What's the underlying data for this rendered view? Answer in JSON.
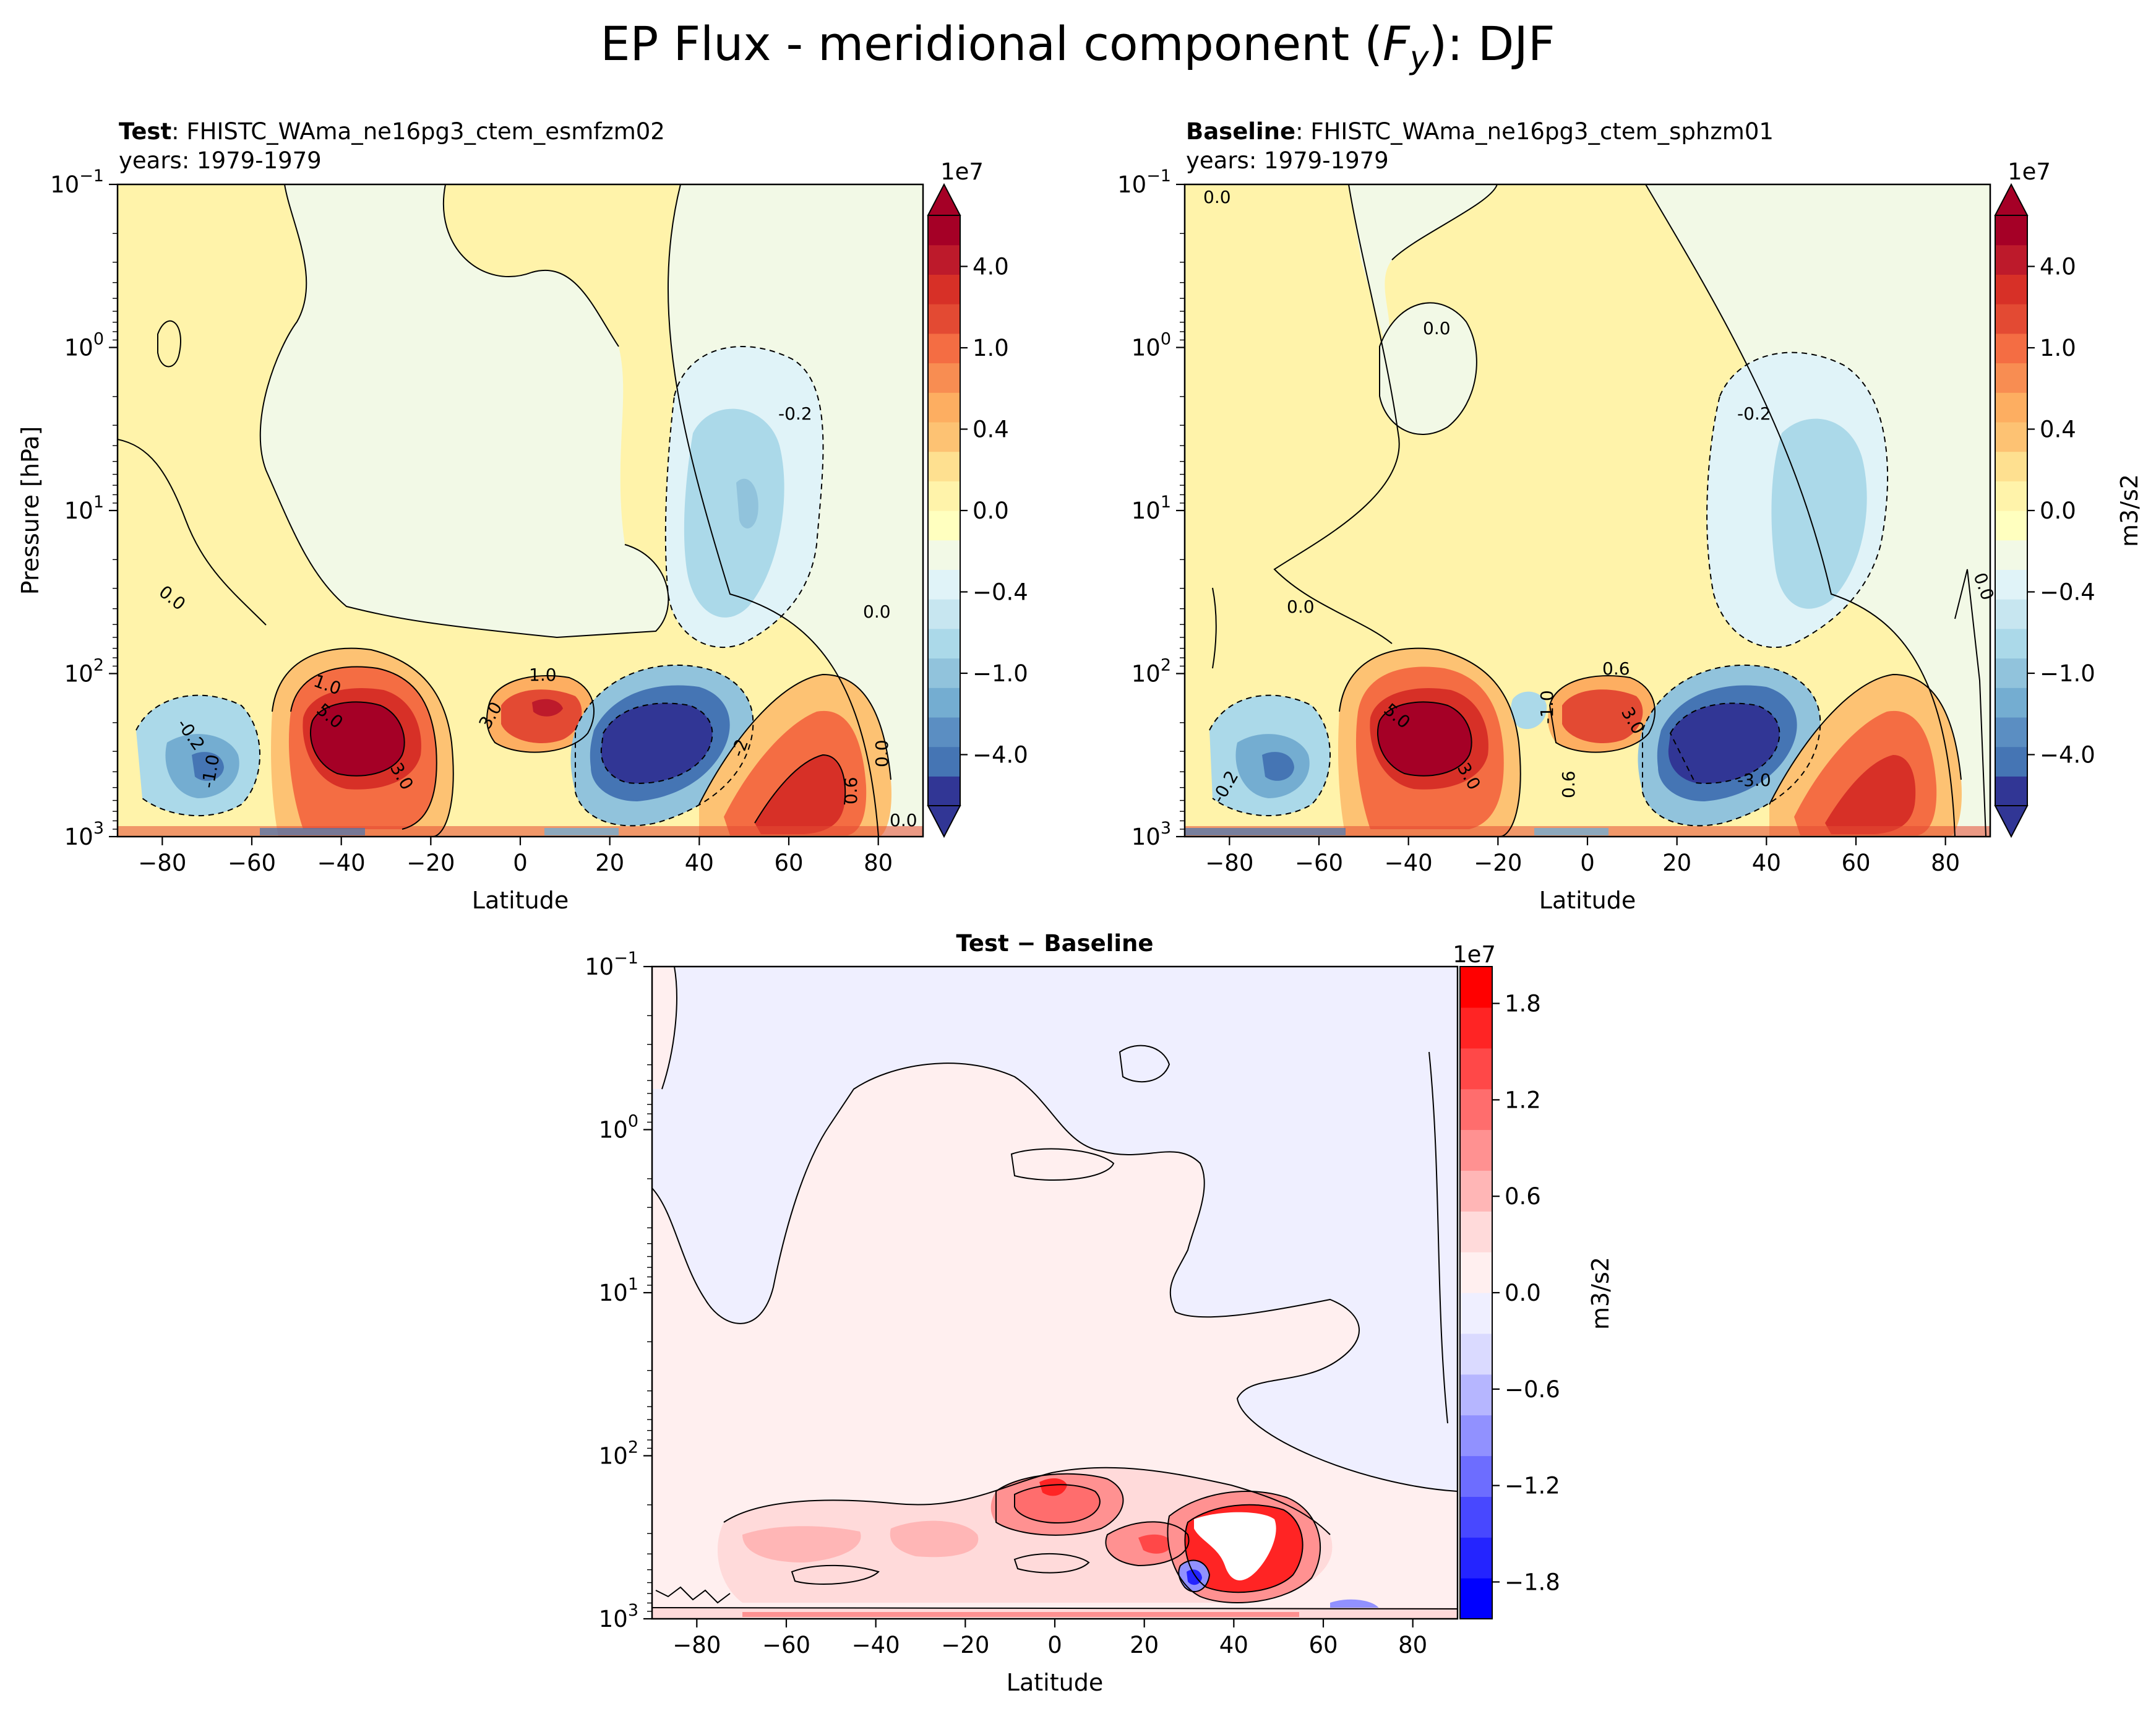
{
  "title_main": "EP Flux - meridional component (",
  "title_var": "F",
  "title_sub": "y",
  "title_end": "): DJF",
  "colors": {
    "rdylbu": [
      "#313695",
      "#4575b4",
      "#5b8ec2",
      "#74add1",
      "#91c3dc",
      "#abd9e9",
      "#c7e6f0",
      "#e0f3f8",
      "#f2f9e6",
      "#ffffbf",
      "#fff3aa",
      "#fee090",
      "#fdc273",
      "#fdae61",
      "#f88d52",
      "#f46d43",
      "#e34a33",
      "#d73027",
      "#bd1a2b",
      "#a50026"
    ],
    "bwr": [
      "#0000ff",
      "#2424ff",
      "#4848ff",
      "#6d6dff",
      "#9191ff",
      "#b6b6ff",
      "#dadaff",
      "#efefff",
      "#ffefef",
      "#ffdada",
      "#ffb6b6",
      "#ff9191",
      "#ff6d6d",
      "#ff4848",
      "#ff2424",
      "#ff0000"
    ]
  },
  "chart_data": [
    {
      "type": "heatmap",
      "id": "test",
      "title_bold": "Test",
      "title_rest": ": FHISTC_WAma_ne16pg3_ctem_esmfzm02",
      "subtitle": "years: 1979-1979",
      "xlabel": "Latitude",
      "ylabel": "Pressure [hPa]",
      "xlim": [
        -90,
        90
      ],
      "ylim": [
        1000,
        0.1
      ],
      "yscale": "log",
      "xticks": [
        "-80",
        "-60",
        "-40",
        "-20",
        "0",
        "20",
        "40",
        "60",
        "80"
      ],
      "xtick_values": [
        -80,
        -60,
        -40,
        -20,
        0,
        20,
        40,
        60,
        80
      ],
      "yticks": [
        {
          "base": "10",
          "exp": "−1",
          "value": 0.1
        },
        {
          "base": "10",
          "exp": "0",
          "value": 1
        },
        {
          "base": "10",
          "exp": "1",
          "value": 10
        },
        {
          "base": "10",
          "exp": "2",
          "value": 100
        },
        {
          "base": "10",
          "exp": "3",
          "value": 1000
        }
      ],
      "colorbar": {
        "offset": "1e7",
        "ticks": [
          "4.0",
          "1.0",
          "0.4",
          "0.0",
          "−0.4",
          "−1.0",
          "−4.0"
        ],
        "label": "",
        "extend": "both"
      },
      "contour_labels": [
        "0.0",
        "0.0",
        "-0.2",
        "1.0",
        "1.0",
        "5.0",
        "3.0",
        "3.0",
        "-2",
        "0.0",
        "0.6",
        "-1.0",
        "-0.2",
        "0.0"
      ],
      "features": [
        {
          "lat": -35,
          "p": 250,
          "sign": "pos",
          "amp": 5.0
        },
        {
          "lat": 3,
          "p": 170,
          "sign": "pos",
          "amp": 3.0
        },
        {
          "lat": 28,
          "p": 250,
          "sign": "neg",
          "amp": -5.0
        },
        {
          "lat": 58,
          "p": 350,
          "sign": "pos",
          "amp": 3.0
        },
        {
          "lat": -65,
          "p": 350,
          "sign": "neg",
          "amp": -1.0
        },
        {
          "lat": 50,
          "p": 8,
          "sign": "neg",
          "amp": -0.3
        }
      ]
    },
    {
      "type": "heatmap",
      "id": "baseline",
      "title_bold": "Baseline",
      "title_rest": ": FHISTC_WAma_ne16pg3_ctem_sphzm01",
      "subtitle": "years: 1979-1979",
      "xlabel": "Latitude",
      "ylabel": "",
      "xlim": [
        -90,
        90
      ],
      "ylim": [
        1000,
        0.1
      ],
      "yscale": "log",
      "xticks": [
        "-80",
        "-60",
        "-40",
        "-20",
        "0",
        "20",
        "40",
        "60",
        "80"
      ],
      "xtick_values": [
        -80,
        -60,
        -40,
        -20,
        0,
        20,
        40,
        60,
        80
      ],
      "yticks": [
        {
          "base": "10",
          "exp": "−1",
          "value": 0.1
        },
        {
          "base": "10",
          "exp": "0",
          "value": 1
        },
        {
          "base": "10",
          "exp": "1",
          "value": 10
        },
        {
          "base": "10",
          "exp": "2",
          "value": 100
        },
        {
          "base": "10",
          "exp": "3",
          "value": 1000
        }
      ],
      "colorbar": {
        "offset": "1e7",
        "ticks": [
          "4.0",
          "1.0",
          "0.4",
          "0.0",
          "−0.4",
          "−1.0",
          "−4.0"
        ],
        "label": "m3/s2",
        "extend": "both"
      },
      "contour_labels": [
        "0.0",
        "0.0",
        "-0.2",
        "0.0",
        "0.6",
        "5.0",
        "3.0",
        "3.0",
        "-1.0",
        "-0.2",
        "0.0",
        "-3.0",
        "0.6"
      ],
      "features": [
        {
          "lat": -35,
          "p": 250,
          "sign": "pos",
          "amp": 5.0
        },
        {
          "lat": 5,
          "p": 170,
          "sign": "pos",
          "amp": 2.0
        },
        {
          "lat": 30,
          "p": 250,
          "sign": "neg",
          "amp": -5.0
        },
        {
          "lat": 60,
          "p": 350,
          "sign": "pos",
          "amp": 3.0
        },
        {
          "lat": -65,
          "p": 350,
          "sign": "neg",
          "amp": -1.0
        },
        {
          "lat": 50,
          "p": 8,
          "sign": "neg",
          "amp": -0.3
        }
      ]
    },
    {
      "type": "heatmap",
      "id": "diff",
      "title_bold": "Test",
      "title_rest": " − Baseline",
      "title_rest_bold": true,
      "subtitle": "",
      "xlabel": "Latitude",
      "ylabel": "",
      "xlim": [
        -90,
        90
      ],
      "ylim": [
        1000,
        0.1
      ],
      "yscale": "log",
      "xticks": [
        "-80",
        "-60",
        "-40",
        "-20",
        "0",
        "20",
        "40",
        "60",
        "80"
      ],
      "xtick_values": [
        -80,
        -60,
        -40,
        -20,
        0,
        20,
        40,
        60,
        80
      ],
      "yticks": [
        {
          "base": "10",
          "exp": "−1",
          "value": 0.1
        },
        {
          "base": "10",
          "exp": "0",
          "value": 1
        },
        {
          "base": "10",
          "exp": "1",
          "value": 10
        },
        {
          "base": "10",
          "exp": "2",
          "value": 100
        },
        {
          "base": "10",
          "exp": "3",
          "value": 1000
        }
      ],
      "colorbar": {
        "offset": "1e7",
        "ticks": [
          "1.8",
          "1.2",
          "0.6",
          "0.0",
          "−0.6",
          "−1.2",
          "−1.8"
        ],
        "label": "m3/s2",
        "extend": "neither"
      },
      "contour_labels": [],
      "features": [
        {
          "lat": 0,
          "p": 170,
          "sign": "pos",
          "amp": 1.0
        },
        {
          "lat": 40,
          "p": 250,
          "sign": "pos",
          "amp": 1.8
        },
        {
          "lat": 20,
          "p": 300,
          "sign": "pos",
          "amp": 0.8
        },
        {
          "lat": 32,
          "p": 550,
          "sign": "neg",
          "amp": -1.8
        },
        {
          "lat": -30,
          "p": 300,
          "sign": "pos",
          "amp": 0.3
        }
      ]
    }
  ]
}
